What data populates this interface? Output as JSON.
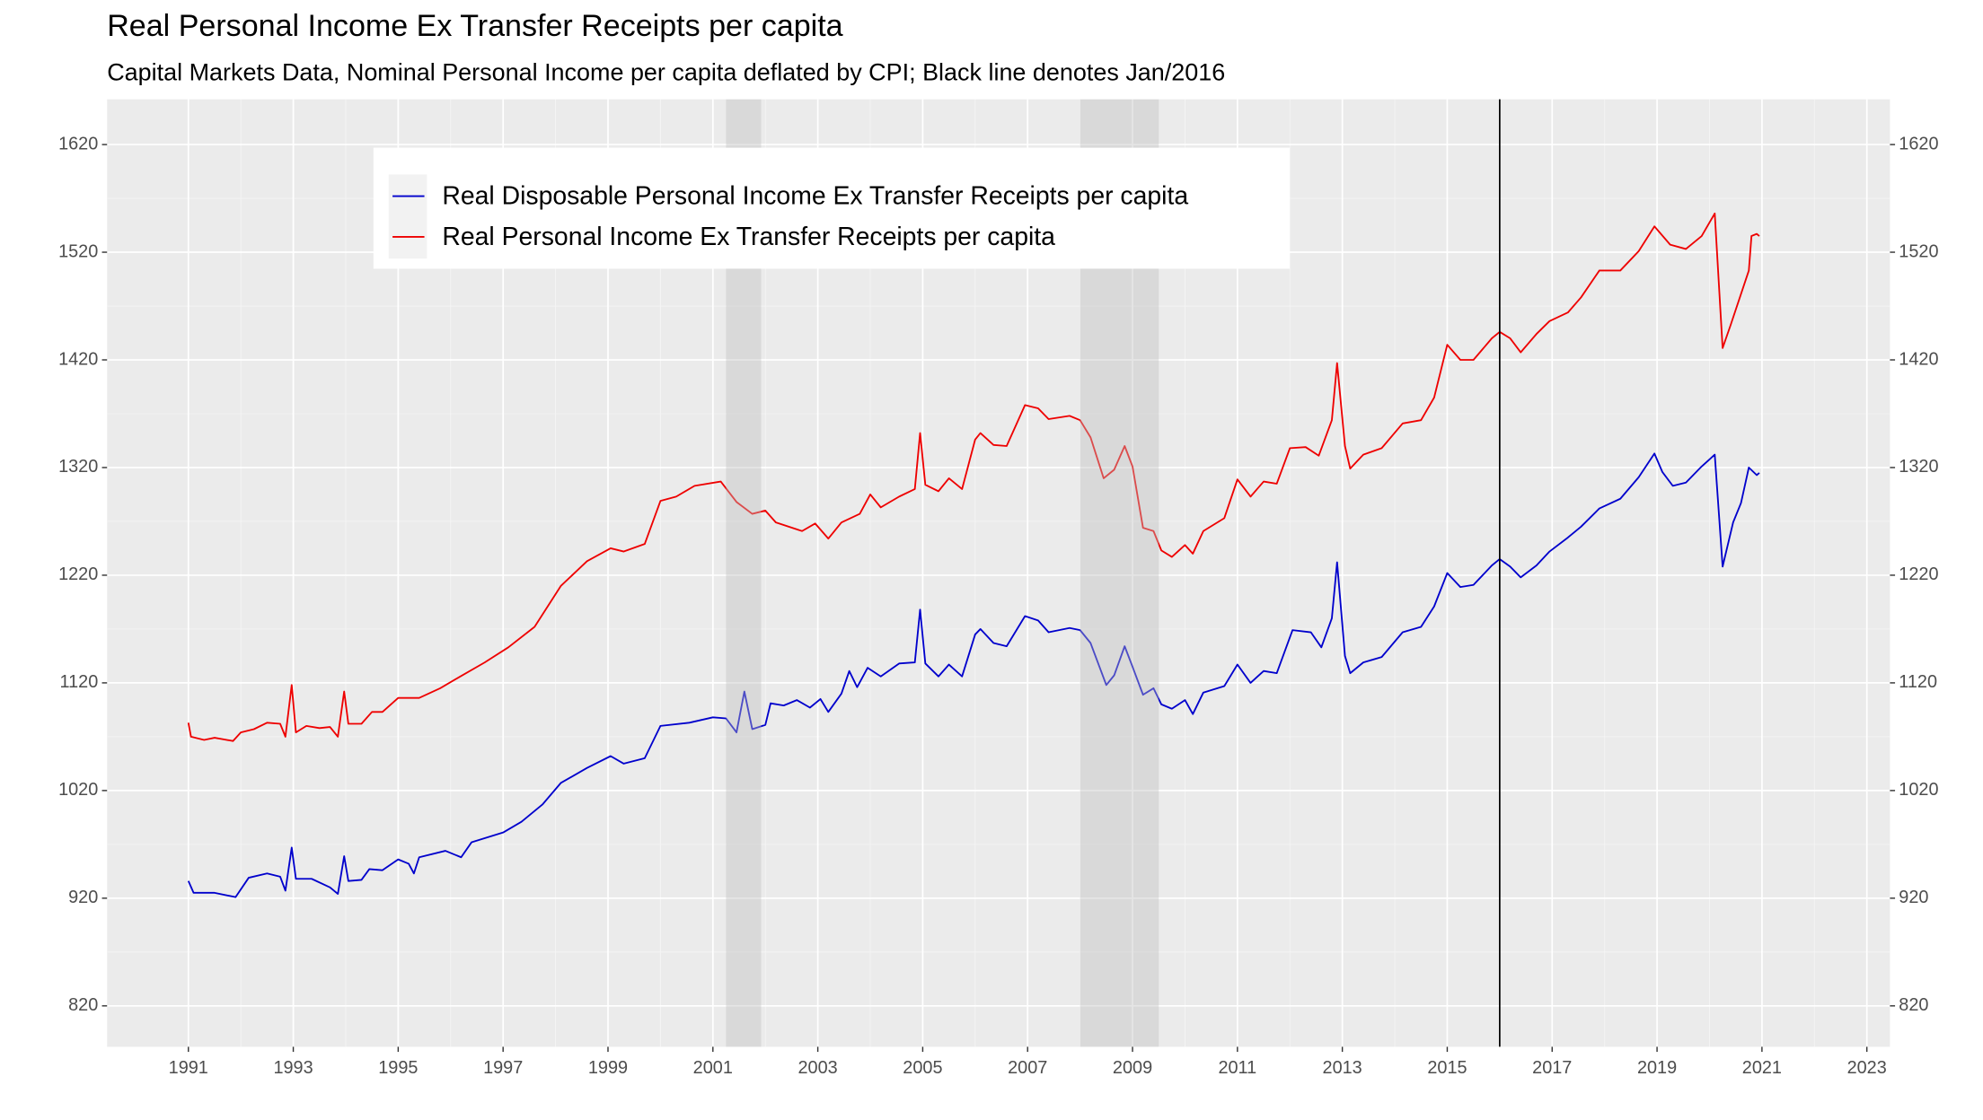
{
  "chart_data": {
    "type": "line",
    "title": "Real Personal Income Ex Transfer Receipts per capita",
    "subtitle": "Capital Markets Data, Nominal Personal Income per capita deflated by CPI; Black line denotes Jan/2016",
    "xlim": [
      1989.45,
      2023.44
    ],
    "xticks": [
      1991,
      1993,
      1995,
      1997,
      1999,
      2001,
      2003,
      2005,
      2007,
      2009,
      2011,
      2013,
      2015,
      2017,
      2019,
      2021,
      2023
    ],
    "ylim": [
      782,
      1662
    ],
    "yticks": [
      820,
      920,
      1020,
      1120,
      1220,
      1320,
      1420,
      1520,
      1620
    ],
    "grid": true,
    "shaded_periods": [
      [
        2001.25,
        2001.92
      ],
      [
        2008.0,
        2009.5
      ]
    ],
    "vline": 2016.0,
    "series": [
      {
        "name": "Real Disposable Personal Income Ex Transfer Receipts per capita",
        "color": "#0000cc",
        "x": [
          1991.0,
          1991.1,
          1991.5,
          1991.9,
          1992.15,
          1992.5,
          1992.75,
          1992.85,
          1992.97,
          1993.05,
          1993.35,
          1993.7,
          1993.85,
          1993.97,
          1994.05,
          1994.3,
          1994.45,
          1994.7,
          1995.0,
          1995.2,
          1995.3,
          1995.4,
          1995.9,
          1996.2,
          1996.4,
          1997.0,
          1997.35,
          1997.75,
          1998.1,
          1998.6,
          1999.05,
          1999.3,
          1999.7,
          2000.0,
          2000.55,
          2001.0,
          2001.25,
          2001.45,
          2001.6,
          2001.75,
          2002.0,
          2002.1,
          2002.35,
          2002.6,
          2002.85,
          2003.05,
          2003.2,
          2003.45,
          2003.6,
          2003.75,
          2003.95,
          2004.2,
          2004.55,
          2004.85,
          2004.95,
          2005.05,
          2005.3,
          2005.5,
          2005.75,
          2006.0,
          2006.1,
          2006.35,
          2006.6,
          2006.95,
          2007.2,
          2007.4,
          2007.8,
          2008.0,
          2008.2,
          2008.5,
          2008.65,
          2008.85,
          2009.0,
          2009.2,
          2009.4,
          2009.55,
          2009.75,
          2010.0,
          2010.15,
          2010.35,
          2010.75,
          2011.0,
          2011.25,
          2011.5,
          2011.75,
          2012.05,
          2012.4,
          2012.6,
          2012.8,
          2012.9,
          2013.05,
          2013.15,
          2013.4,
          2013.75,
          2014.15,
          2014.5,
          2014.75,
          2015.0,
          2015.25,
          2015.5,
          2015.85,
          2016.0,
          2016.2,
          2016.4,
          2016.7,
          2016.95,
          2017.3,
          2017.55,
          2017.9,
          2018.3,
          2018.65,
          2018.95,
          2019.1,
          2019.3,
          2019.55,
          2019.85,
          2020.1,
          2020.25,
          2020.45,
          2020.6,
          2020.75,
          2020.9,
          2020.95
        ],
        "values": [
          936,
          925,
          925,
          921,
          939,
          943,
          940,
          927,
          967,
          938,
          938,
          930,
          924,
          959,
          936,
          937,
          947,
          946,
          956,
          952,
          943,
          958,
          964,
          958,
          972,
          981,
          991,
          1007,
          1027,
          1041,
          1052,
          1045,
          1050,
          1080,
          1083,
          1088,
          1087,
          1074,
          1112,
          1077,
          1081,
          1101,
          1099,
          1104,
          1097,
          1105,
          1093,
          1110,
          1131,
          1116,
          1134,
          1126,
          1138,
          1139,
          1188,
          1138,
          1126,
          1137,
          1126,
          1165,
          1170,
          1157,
          1154,
          1182,
          1178,
          1167,
          1171,
          1169,
          1157,
          1118,
          1127,
          1154,
          1135,
          1109,
          1115,
          1100,
          1096,
          1104,
          1091,
          1111,
          1117,
          1137,
          1120,
          1131,
          1129,
          1169,
          1167,
          1153,
          1180,
          1232,
          1145,
          1129,
          1139,
          1144,
          1167,
          1172,
          1191,
          1222,
          1209,
          1211,
          1229,
          1235,
          1228,
          1218,
          1229,
          1242,
          1255,
          1265,
          1282,
          1291,
          1311,
          1333,
          1316,
          1303,
          1306,
          1321,
          1332,
          1228,
          1269,
          1287,
          1320,
          1313,
          1315
        ]
      },
      {
        "name": "Real Personal Income Ex Transfer Receipts per capita",
        "color": "#ee0000",
        "x": [
          1991.0,
          1991.05,
          1991.3,
          1991.5,
          1991.85,
          1992.0,
          1992.25,
          1992.5,
          1992.75,
          1992.85,
          1992.97,
          1993.05,
          1993.25,
          1993.5,
          1993.7,
          1993.85,
          1993.97,
          1994.05,
          1994.3,
          1994.5,
          1994.7,
          1995.0,
          1995.4,
          1995.8,
          1996.15,
          1996.65,
          1997.1,
          1997.6,
          1998.1,
          1998.6,
          1999.05,
          1999.3,
          1999.7,
          2000.0,
          2000.3,
          2000.65,
          2001.15,
          2001.45,
          2001.75,
          2002.0,
          2002.2,
          2002.7,
          2002.95,
          2003.2,
          2003.45,
          2003.8,
          2004.0,
          2004.2,
          2004.55,
          2004.85,
          2004.95,
          2005.05,
          2005.3,
          2005.5,
          2005.75,
          2006.0,
          2006.1,
          2006.35,
          2006.6,
          2006.95,
          2007.2,
          2007.4,
          2007.8,
          2008.0,
          2008.2,
          2008.45,
          2008.65,
          2008.85,
          2009.0,
          2009.2,
          2009.4,
          2009.55,
          2009.75,
          2010.0,
          2010.15,
          2010.35,
          2010.75,
          2011.0,
          2011.25,
          2011.5,
          2011.75,
          2012.0,
          2012.3,
          2012.55,
          2012.8,
          2012.9,
          2013.05,
          2013.15,
          2013.4,
          2013.75,
          2014.15,
          2014.5,
          2014.75,
          2015.0,
          2015.25,
          2015.5,
          2015.85,
          2016.0,
          2016.2,
          2016.4,
          2016.7,
          2016.95,
          2017.3,
          2017.55,
          2017.9,
          2018.3,
          2018.65,
          2018.95,
          2019.25,
          2019.55,
          2019.85,
          2020.1,
          2020.25,
          2020.4,
          2020.75,
          2020.8,
          2020.9,
          2020.95
        ],
        "values": [
          1083,
          1070,
          1067,
          1069,
          1066,
          1074,
          1077,
          1083,
          1082,
          1070,
          1118,
          1074,
          1080,
          1078,
          1079,
          1070,
          1112,
          1082,
          1082,
          1093,
          1093,
          1106,
          1106,
          1115,
          1125,
          1139,
          1153,
          1172,
          1210,
          1233,
          1245,
          1242,
          1249,
          1289,
          1293,
          1303,
          1307,
          1288,
          1277,
          1280,
          1269,
          1261,
          1268,
          1254,
          1269,
          1277,
          1295,
          1283,
          1293,
          1300,
          1352,
          1304,
          1298,
          1310,
          1300,
          1346,
          1352,
          1341,
          1340,
          1378,
          1375,
          1365,
          1368,
          1364,
          1348,
          1310,
          1318,
          1340,
          1321,
          1264,
          1261,
          1243,
          1237,
          1248,
          1240,
          1261,
          1273,
          1309,
          1293,
          1307,
          1305,
          1338,
          1339,
          1331,
          1364,
          1417,
          1340,
          1319,
          1332,
          1338,
          1361,
          1364,
          1385,
          1434,
          1420,
          1420,
          1440,
          1446,
          1440,
          1427,
          1444,
          1456,
          1464,
          1478,
          1503,
          1503,
          1521,
          1544,
          1527,
          1523,
          1535,
          1556,
          1431,
          1452,
          1503,
          1535,
          1537,
          1535
        ]
      }
    ]
  }
}
